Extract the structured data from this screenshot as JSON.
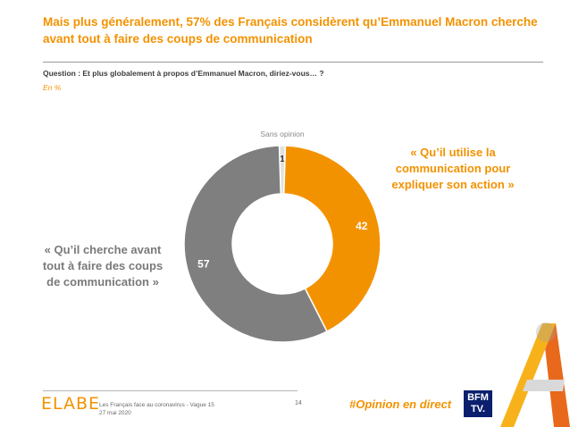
{
  "title": "Mais plus généralement, 57% des Français considèrent qu’Emmanuel Macron cherche avant tout à faire des coups de communication",
  "question": "Question : Et plus globalement à propos d’Emmanuel Macron, diriez-vous… ?",
  "unit": "En %",
  "quote_right": "« Qu’il utilise la communication pour expliquer son action »",
  "quote_left": "« Qu’il cherche avant tout à faire des coups de communication »",
  "footer": {
    "logo": "ELABE",
    "study": "Les Français face au coronavirus - Vague 15",
    "date": "27 mai 2020",
    "page": "14",
    "hashtag": "#Opinion en direct",
    "bfm_line1": "BFM",
    "bfm_line2": "TV."
  },
  "colors": {
    "accent": "#f39200",
    "grey": "#7f7f7f",
    "no_opinion": "#e0e0e0"
  },
  "chart_data": {
    "type": "pie",
    "donut": true,
    "categories": [
      "Sans opinion",
      "« Qu’il utilise la communication pour expliquer son action »",
      "« Qu’il cherche avant tout à faire des coups de communication »"
    ],
    "values": [
      1,
      42,
      57
    ],
    "data_labels": [
      "1",
      "42",
      "57"
    ],
    "slice_colors": [
      "#e0e0e0",
      "#f39200",
      "#7f7f7f"
    ],
    "outer_label": "Sans opinion"
  }
}
